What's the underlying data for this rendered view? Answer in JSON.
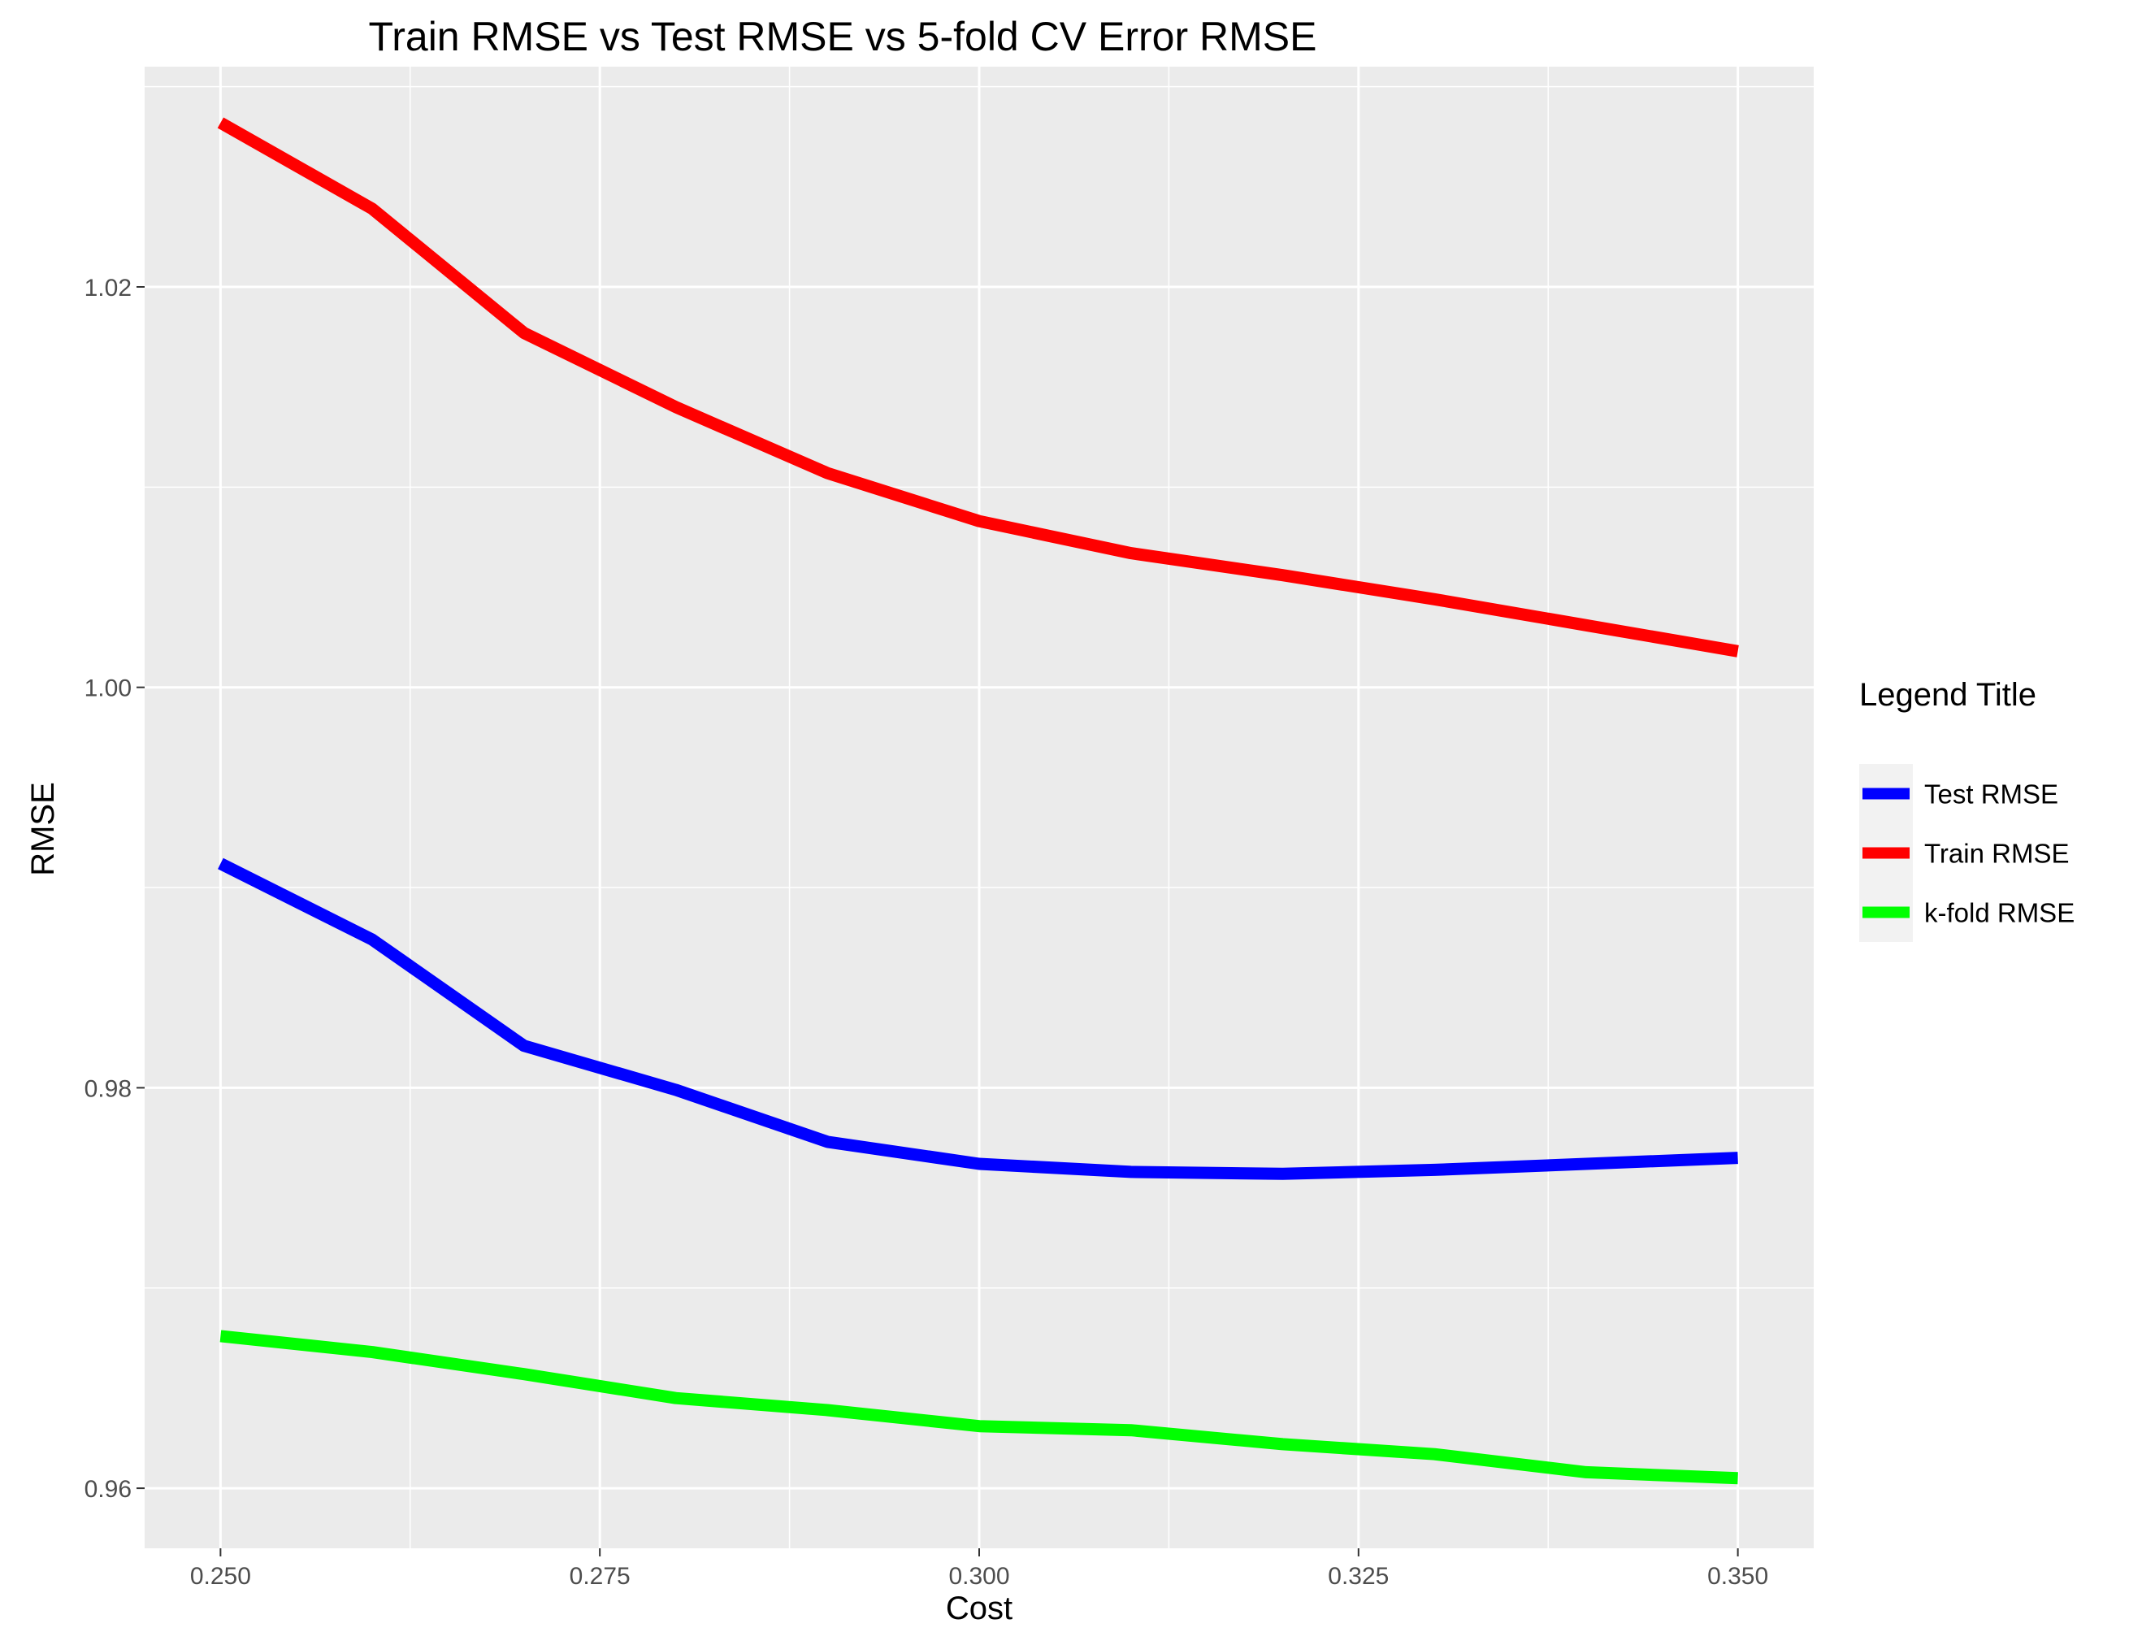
{
  "chart_data": {
    "type": "line",
    "title": "Train RMSE vs Test RMSE vs 5-fold CV Error RMSE",
    "xlabel": "Cost",
    "ylabel": "RMSE",
    "xlim": [
      0.245,
      0.355
    ],
    "ylim": [
      0.957,
      1.031
    ],
    "x_ticks": [
      0.25,
      0.275,
      0.3,
      0.325,
      0.35
    ],
    "x_tick_labels": [
      "0.250",
      "0.275",
      "0.300",
      "0.325",
      "0.350"
    ],
    "y_ticks": [
      0.96,
      0.98,
      1.0,
      1.02
    ],
    "y_tick_labels": [
      "0.96",
      "0.98",
      "1.00",
      "1.02"
    ],
    "grid": true,
    "legend": {
      "title": "Legend Title",
      "placement": "right"
    },
    "x": [
      0.25,
      0.26,
      0.27,
      0.28,
      0.29,
      0.3,
      0.31,
      0.32,
      0.33,
      0.34,
      0.35
    ],
    "series": [
      {
        "name": "Test RMSE",
        "color": "#0000ff",
        "values": [
          0.9912,
          0.9874,
          0.9821,
          0.9799,
          0.9773,
          0.9762,
          0.9758,
          0.9757,
          0.9759,
          0.9762,
          0.9765
        ]
      },
      {
        "name": "Train RMSE",
        "color": "#ff0000",
        "values": [
          1.0282,
          1.0239,
          1.0177,
          1.014,
          1.0107,
          1.0083,
          1.0067,
          1.0056,
          1.0044,
          1.0031,
          1.0018
        ]
      },
      {
        "name": "k-fold RMSE",
        "color": "#00ff00",
        "values": [
          0.9676,
          0.9668,
          0.9657,
          0.9645,
          0.9639,
          0.9631,
          0.9629,
          0.9622,
          0.9617,
          0.9608,
          0.9605
        ]
      }
    ]
  }
}
